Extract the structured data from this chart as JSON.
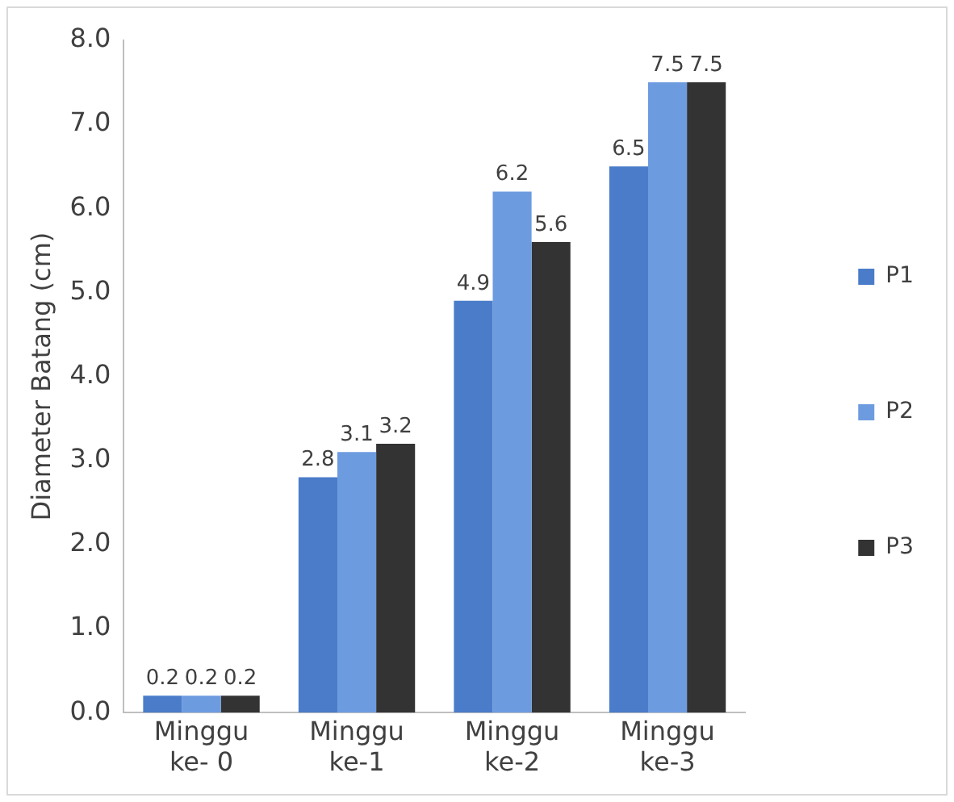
{
  "chart_data": {
    "type": "bar",
    "ylabel": "Diameter Batang (cm)",
    "categories": [
      "Minggu ke- 0",
      "Minggu ke-1",
      "Minggu ke-2",
      "Minggu ke-3"
    ],
    "series": [
      {
        "name": "P1",
        "color": "#4a7cc9",
        "values": [
          0.2,
          2.8,
          4.9,
          6.5
        ]
      },
      {
        "name": "P2",
        "color": "#6d9be0",
        "values": [
          0.2,
          3.1,
          6.2,
          7.5
        ]
      },
      {
        "name": "P3",
        "color": "#333333",
        "values": [
          0.2,
          3.2,
          5.6,
          7.5
        ]
      }
    ],
    "ylim": [
      0,
      8
    ],
    "yticks": [
      {
        "value": 0,
        "label": "0.0"
      },
      {
        "value": 1,
        "label": "1.0"
      },
      {
        "value": 2,
        "label": "2.0"
      },
      {
        "value": 3,
        "label": "3.0"
      },
      {
        "value": 4,
        "label": "4.0"
      },
      {
        "value": 5,
        "label": "5.0"
      },
      {
        "value": 6,
        "label": "6.0"
      },
      {
        "value": 7,
        "label": "7.0"
      },
      {
        "value": 8,
        "label": "8.0"
      }
    ],
    "grid": false,
    "legend": "right",
    "data_labels": true
  }
}
